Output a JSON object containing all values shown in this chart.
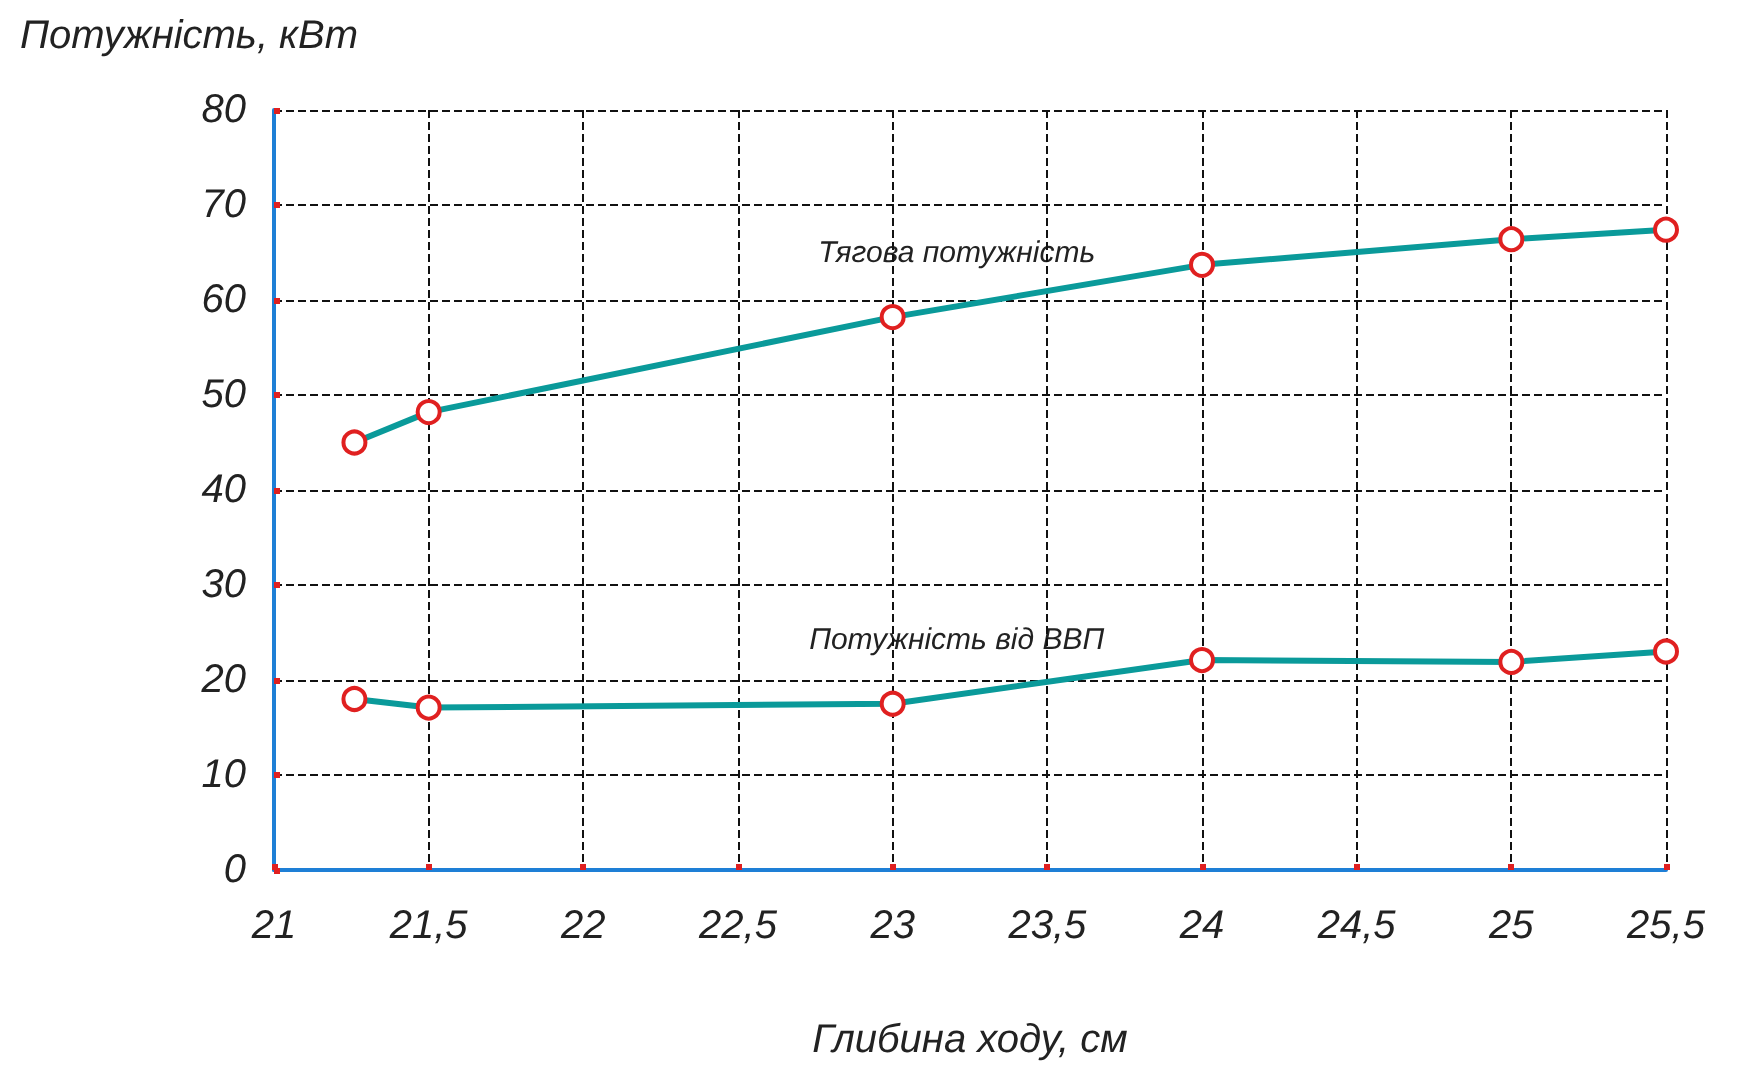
{
  "chart_data": {
    "type": "line",
    "xlabel": "Глибина ходу, см",
    "ylabel": "Потужність, кВт",
    "xlim": [
      21,
      25.5
    ],
    "xticks": [
      21,
      {
        "value": 21.5,
        "label": "21,5"
      },
      22,
      {
        "value": 22.5,
        "label": "22,5"
      },
      23,
      {
        "value": 23.5,
        "label": "23,5"
      },
      24,
      {
        "value": 24.5,
        "label": "24,5"
      },
      25,
      {
        "value": 25.5,
        "label": "25,5"
      }
    ],
    "ylim": [
      0,
      80
    ],
    "yticks": [
      0,
      10,
      20,
      30,
      40,
      50,
      60,
      70,
      80
    ],
    "grid": true,
    "marker": "circle",
    "line_style": "solid",
    "legend": false,
    "series": [
      {
        "name": "Тягова потужність",
        "color": "#0a9a9a",
        "x": [
          21.26,
          21.5,
          23,
          24,
          25,
          25.5
        ],
        "values": [
          45,
          48.2,
          58.2,
          63.7,
          66.4,
          67.4
        ]
      },
      {
        "name": "Потужність від ВВП",
        "color": "#0a9a9a",
        "x": [
          21.26,
          21.5,
          23,
          24,
          25,
          25.5
        ],
        "values": [
          18,
          17.1,
          17.5,
          22.1,
          21.9,
          23
        ]
      }
    ]
  }
}
